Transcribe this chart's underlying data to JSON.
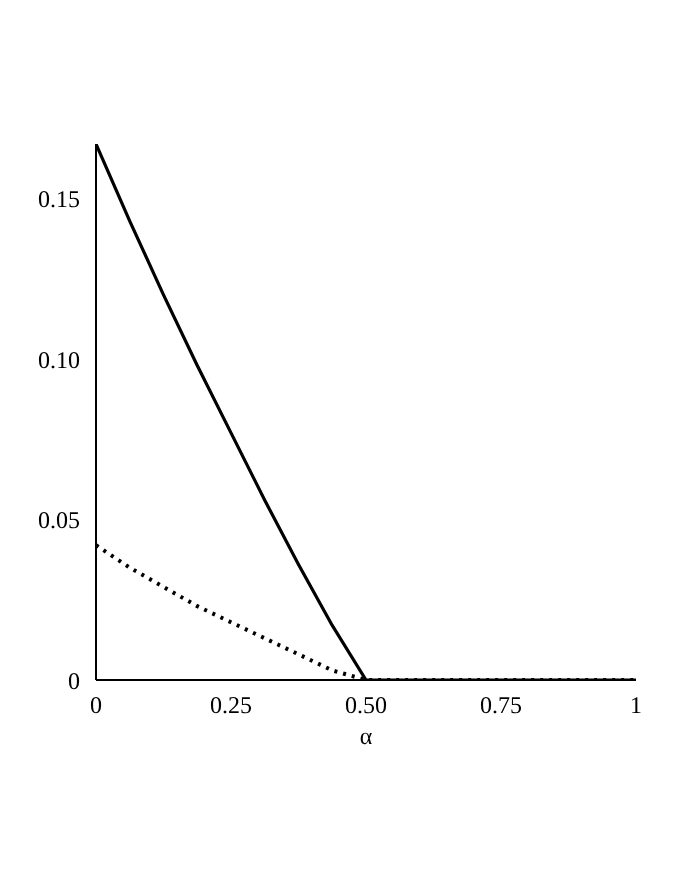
{
  "chart_data": {
    "type": "line",
    "xlabel": "α",
    "x": [
      0,
      0.0625,
      0.125,
      0.1875,
      0.25,
      0.3125,
      0.375,
      0.4375,
      0.5,
      0.75,
      1
    ],
    "xlim": [
      0,
      1
    ],
    "xticks": [
      0,
      0.25,
      {
        "value": 0.5,
        "label": "0.50"
      },
      0.75,
      1
    ],
    "ylim": [
      0,
      0.167
    ],
    "yticks": [
      0,
      0.05,
      {
        "value": 0.1,
        "label": "0.10"
      },
      0.15
    ],
    "grid": false,
    "marker": "none",
    "series": [
      {
        "color": "#000000",
        "line_style": "solid",
        "values": [
          0.167,
          0.143,
          0.12,
          0.098,
          0.077,
          0.056,
          0.036,
          0.017,
          0,
          0,
          0
        ]
      },
      {
        "color": "#000000",
        "line_style": "dotted",
        "values": [
          0.042,
          0.035,
          0.029,
          0.023,
          0.018,
          0.013,
          0.008,
          0.003,
          0,
          0,
          0
        ]
      }
    ]
  }
}
